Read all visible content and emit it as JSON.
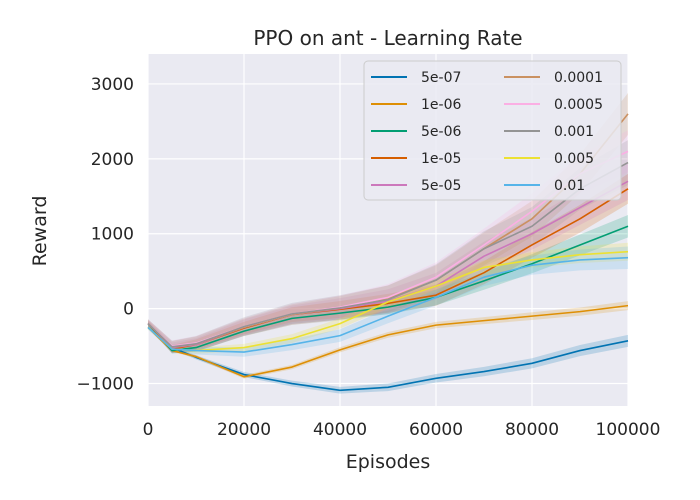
{
  "chart_data": {
    "type": "line",
    "title": "PPO on ant - Learning Rate",
    "xlabel": "Episodes",
    "ylabel": "Reward",
    "xlim": [
      0,
      100000
    ],
    "ylim": [
      -1300,
      3400
    ],
    "grid": true,
    "legend_position": "top-right",
    "x_ticks": [
      0,
      20000,
      40000,
      60000,
      80000,
      100000
    ],
    "x_tick_labels": [
      "0",
      "20000",
      "40000",
      "60000",
      "80000",
      "100000"
    ],
    "y_ticks": [
      -1000,
      0,
      1000,
      2000,
      3000
    ],
    "y_tick_labels": [
      "−1000",
      "0",
      "1000",
      "2000",
      "3000"
    ],
    "x": [
      0,
      5000,
      10000,
      20000,
      30000,
      40000,
      50000,
      60000,
      70000,
      80000,
      90000,
      100000
    ],
    "series": [
      {
        "name": "5e-07",
        "color": "#0173b2",
        "values": [
          -250,
          -520,
          -650,
          -880,
          -1000,
          -1090,
          -1050,
          -930,
          -840,
          -730,
          -560,
          -430
        ],
        "band": 80
      },
      {
        "name": "1e-06",
        "color": "#de8f05",
        "values": [
          -250,
          -560,
          -640,
          -910,
          -780,
          -550,
          -350,
          -220,
          -160,
          -100,
          -40,
          40
        ],
        "band": 60
      },
      {
        "name": "5e-06",
        "color": "#029e73",
        "values": [
          -200,
          -560,
          -520,
          -300,
          -130,
          -60,
          20,
          150,
          370,
          600,
          850,
          1100
        ],
        "band": 150
      },
      {
        "name": "1e-05",
        "color": "#d55e00",
        "values": [
          -200,
          -540,
          -480,
          -260,
          -80,
          -10,
          70,
          180,
          480,
          850,
          1200,
          1600
        ],
        "band": 200
      },
      {
        "name": "5e-05",
        "color": "#cc78bc",
        "values": [
          -200,
          -520,
          -480,
          -250,
          -80,
          0,
          100,
          300,
          700,
          1000,
          1350,
          1700
        ],
        "band": 250
      },
      {
        "name": "0.0001",
        "color": "#ca9161",
        "values": [
          -200,
          -510,
          -470,
          -250,
          -80,
          10,
          130,
          380,
          800,
          1200,
          1800,
          2600
        ],
        "band": 280
      },
      {
        "name": "0.0005",
        "color": "#fbafe4",
        "values": [
          -200,
          -500,
          -460,
          -240,
          -70,
          20,
          150,
          420,
          850,
          1300,
          1800,
          2100
        ],
        "band": 280
      },
      {
        "name": "0.001",
        "color": "#949494",
        "values": [
          -200,
          -510,
          -470,
          -240,
          -70,
          10,
          120,
          380,
          800,
          1100,
          1600,
          1950
        ],
        "band": 300
      },
      {
        "name": "0.005",
        "color": "#ece133",
        "values": [
          -250,
          -540,
          -560,
          -520,
          -400,
          -200,
          90,
          300,
          550,
          650,
          720,
          760
        ],
        "band": 120
      },
      {
        "name": "0.01",
        "color": "#56b4e9",
        "values": [
          -250,
          -540,
          -560,
          -580,
          -480,
          -360,
          -100,
          150,
          420,
          580,
          650,
          680
        ],
        "band": 150
      }
    ]
  }
}
